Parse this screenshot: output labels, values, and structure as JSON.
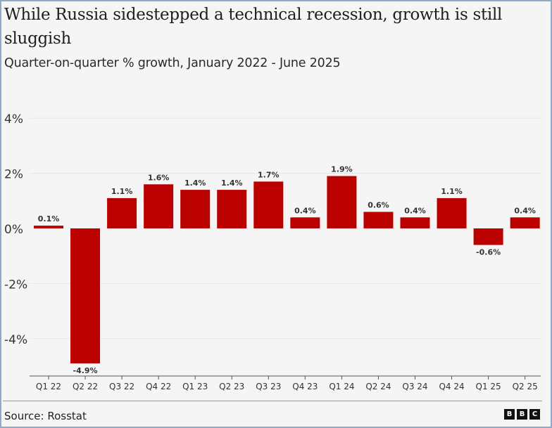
{
  "title": "While Russia sidestepped a technical recession, growth is still sluggish",
  "subtitle": "Quarter-on-quarter % growth, January 2022 - June 2025",
  "source": "Source: Rosstat",
  "logo": [
    "B",
    "B",
    "C"
  ],
  "colors": {
    "bar": "#bb0000",
    "grid": "#e6e6e6",
    "axis": "#555555",
    "text": "#333333"
  },
  "chart_data": {
    "type": "bar",
    "title": "While Russia sidestepped a technical recession, growth is still sluggish",
    "subtitle": "Quarter-on-quarter % growth, January 2022 - June 2025",
    "xlabel": "",
    "ylabel": "",
    "categories": [
      "Q1 22",
      "Q2 22",
      "Q3 22",
      "Q4 22",
      "Q1 23",
      "Q2 23",
      "Q3 23",
      "Q4 23",
      "Q1 24",
      "Q2 24",
      "Q3 24",
      "Q4 24",
      "Q1 25",
      "Q2 25"
    ],
    "values": [
      0.1,
      -4.9,
      1.1,
      1.6,
      1.4,
      1.4,
      1.7,
      0.4,
      1.9,
      0.6,
      0.4,
      1.1,
      -0.6,
      0.4
    ],
    "data_labels": [
      "0.1%",
      "-4.9%",
      "1.1%",
      "1.6%",
      "1.4%",
      "1.4%",
      "1.7%",
      "0.4%",
      "1.9%",
      "0.6%",
      "0.4%",
      "1.1%",
      "-0.6%",
      "0.4%"
    ],
    "yticks": [
      4,
      2,
      0,
      -2,
      -4
    ],
    "ytick_labels": [
      "4%",
      "2%",
      "0%",
      "-2%",
      "-4%"
    ],
    "ylim": [
      -5.3,
      4
    ],
    "grid": true,
    "legend": "none",
    "source": "Source: Rosstat"
  }
}
